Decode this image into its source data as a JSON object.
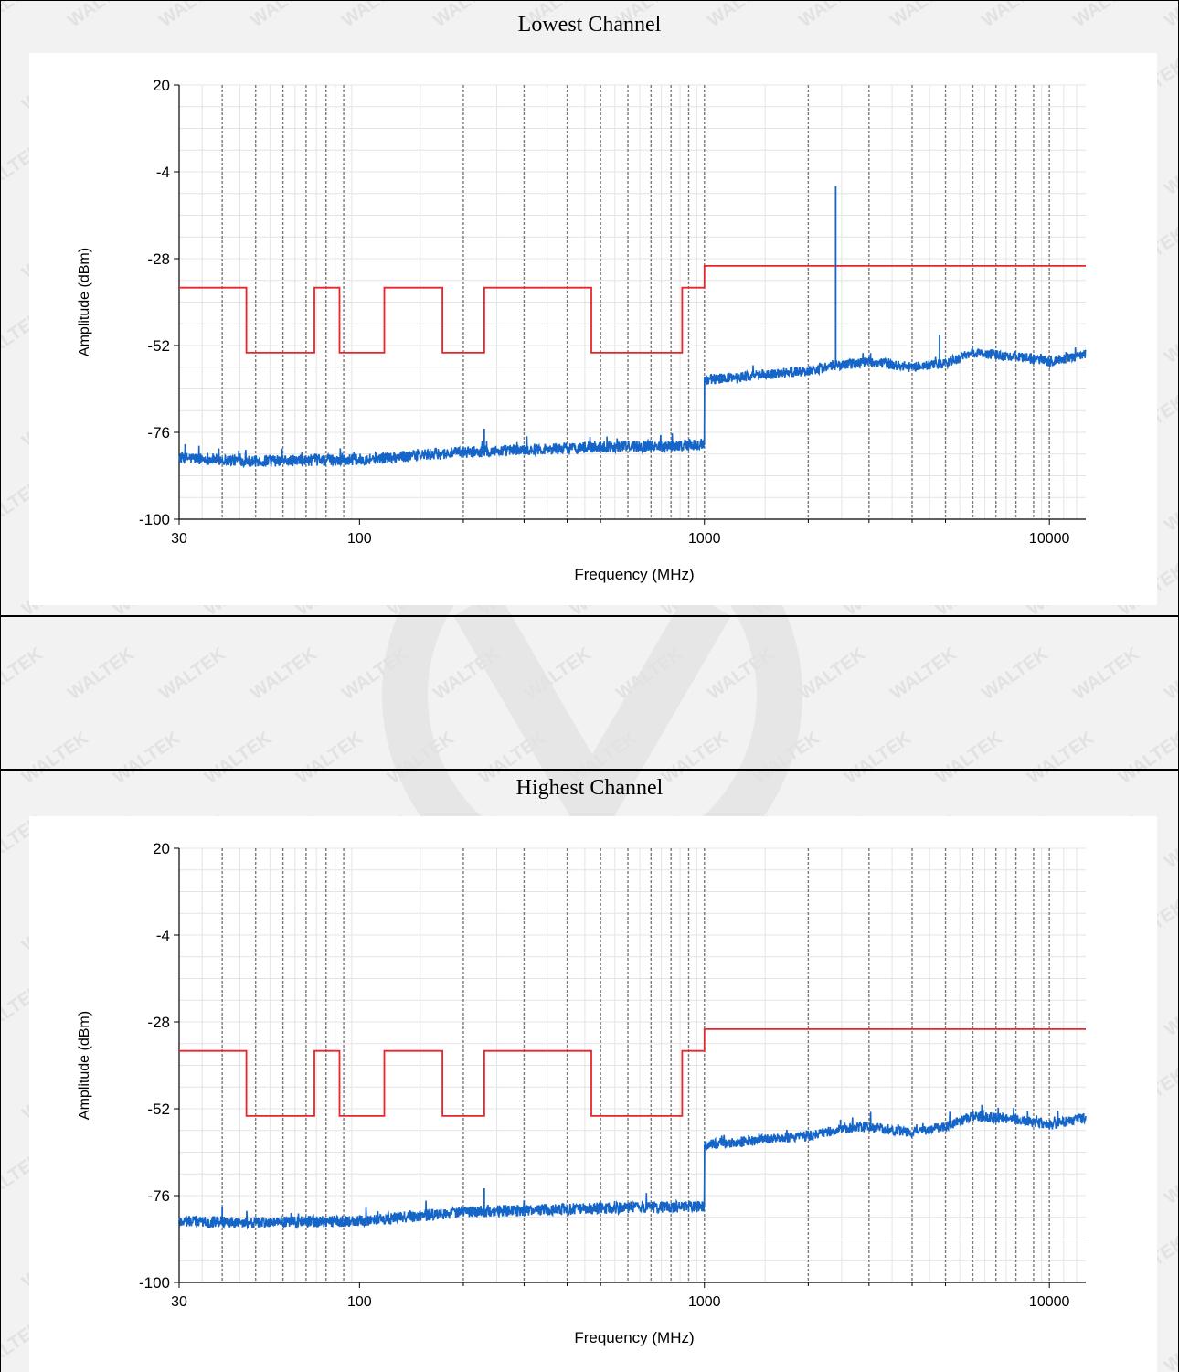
{
  "brand_watermark": "WALTEK",
  "sections": [
    {
      "title": "Lowest Channel"
    },
    {
      "title": ""
    },
    {
      "title": "Highest Channel"
    }
  ],
  "colors": {
    "limit_line": "#e8252a",
    "trace": "#1565c8",
    "grid": "#e4e4e4",
    "decade_lines": "#7a7a7a"
  },
  "chart_data": [
    {
      "type": "line",
      "title": "Lowest Channel",
      "xlabel": "Frequency (MHz)",
      "ylabel": "Amplitude (dBm)",
      "x_scale": "log",
      "xlim": [
        30,
        12750
      ],
      "ylim": [
        -100,
        20
      ],
      "x_ticks": [
        30,
        100,
        1000,
        10000
      ],
      "x_tick_labels": [
        "30",
        "100",
        "1000",
        "10000"
      ],
      "y_ticks": [
        20,
        -4,
        -28,
        -52,
        -76,
        -100
      ],
      "y_tick_labels": [
        "20",
        "-4",
        "-28",
        "-52",
        "-76",
        "-100"
      ],
      "vertical_markers_mhz": [
        40,
        50,
        60,
        70,
        80,
        90,
        200,
        300,
        400,
        500,
        600,
        700,
        800,
        900,
        1000,
        2000,
        3000,
        4000,
        5000,
        6000,
        7000,
        8000,
        9000,
        10000
      ],
      "series": [
        {
          "role": "limit",
          "x": [
            30,
            47,
            47,
            74,
            74,
            87.5,
            87.5,
            118,
            118,
            174,
            174,
            230,
            230,
            470,
            470,
            862,
            862,
            1000,
            1000,
            12750
          ],
          "y": [
            -36,
            -36,
            -54,
            -54,
            -36,
            -36,
            -54,
            -54,
            -36,
            -36,
            -54,
            -54,
            -36,
            -36,
            -54,
            -54,
            -36,
            -36,
            -30,
            -30
          ]
        },
        {
          "role": "measurement",
          "x": [
            30,
            50,
            100,
            200,
            500,
            999,
            1000,
            2000,
            2400,
            3000,
            4000,
            5000,
            6000,
            8000,
            10000,
            12750
          ],
          "y": [
            -83,
            -84,
            -83.5,
            -81.5,
            -80,
            -79.5,
            -61.5,
            -59,
            -57.5,
            -56.5,
            -58,
            -57,
            -54,
            -55,
            -56.5,
            -54.5
          ],
          "peaks": [
            {
              "x": 2402,
              "y": -8
            },
            {
              "x": 4804,
              "y": -49
            },
            {
              "x": 230,
              "y": -75
            }
          ]
        }
      ]
    },
    {
      "type": "line",
      "title": "Highest Channel",
      "xlabel": "Frequency (MHz)",
      "ylabel": "Amplitude (dBm)",
      "x_scale": "log",
      "xlim": [
        30,
        12750
      ],
      "ylim": [
        -100,
        20
      ],
      "x_ticks": [
        30,
        100,
        1000,
        10000
      ],
      "x_tick_labels": [
        "30",
        "100",
        "1000",
        "10000"
      ],
      "y_ticks": [
        20,
        -4,
        -28,
        -52,
        -76,
        -100
      ],
      "y_tick_labels": [
        "20",
        "-4",
        "-28",
        "-52",
        "-76",
        "-100"
      ],
      "vertical_markers_mhz": [
        40,
        50,
        60,
        70,
        80,
        90,
        200,
        300,
        400,
        500,
        600,
        700,
        800,
        900,
        1000,
        2000,
        3000,
        4000,
        5000,
        6000,
        7000,
        8000,
        9000,
        10000
      ],
      "series": [
        {
          "role": "limit",
          "x": [
            30,
            47,
            47,
            74,
            74,
            87.5,
            87.5,
            118,
            118,
            174,
            174,
            230,
            230,
            470,
            470,
            862,
            862,
            1000,
            1000,
            12750
          ],
          "y": [
            -36,
            -36,
            -54,
            -54,
            -36,
            -36,
            -54,
            -54,
            -36,
            -36,
            -54,
            -54,
            -36,
            -36,
            -54,
            -54,
            -36,
            -36,
            -30,
            -30
          ]
        },
        {
          "role": "measurement",
          "x": [
            30,
            50,
            100,
            200,
            500,
            999,
            1000,
            2000,
            2500,
            3000,
            4000,
            5000,
            6000,
            8000,
            10000,
            12750
          ],
          "y": [
            -83,
            -83.5,
            -83,
            -80.5,
            -79.5,
            -79,
            -62,
            -59.5,
            -57.5,
            -57,
            -58.5,
            -57,
            -54,
            -55,
            -56.5,
            -54.5
          ],
          "peaks": [
            {
              "x": 230,
              "y": -74
            },
            {
              "x": 40,
              "y": -79
            },
            {
              "x": 2480,
              "y": -55
            }
          ]
        }
      ]
    }
  ]
}
